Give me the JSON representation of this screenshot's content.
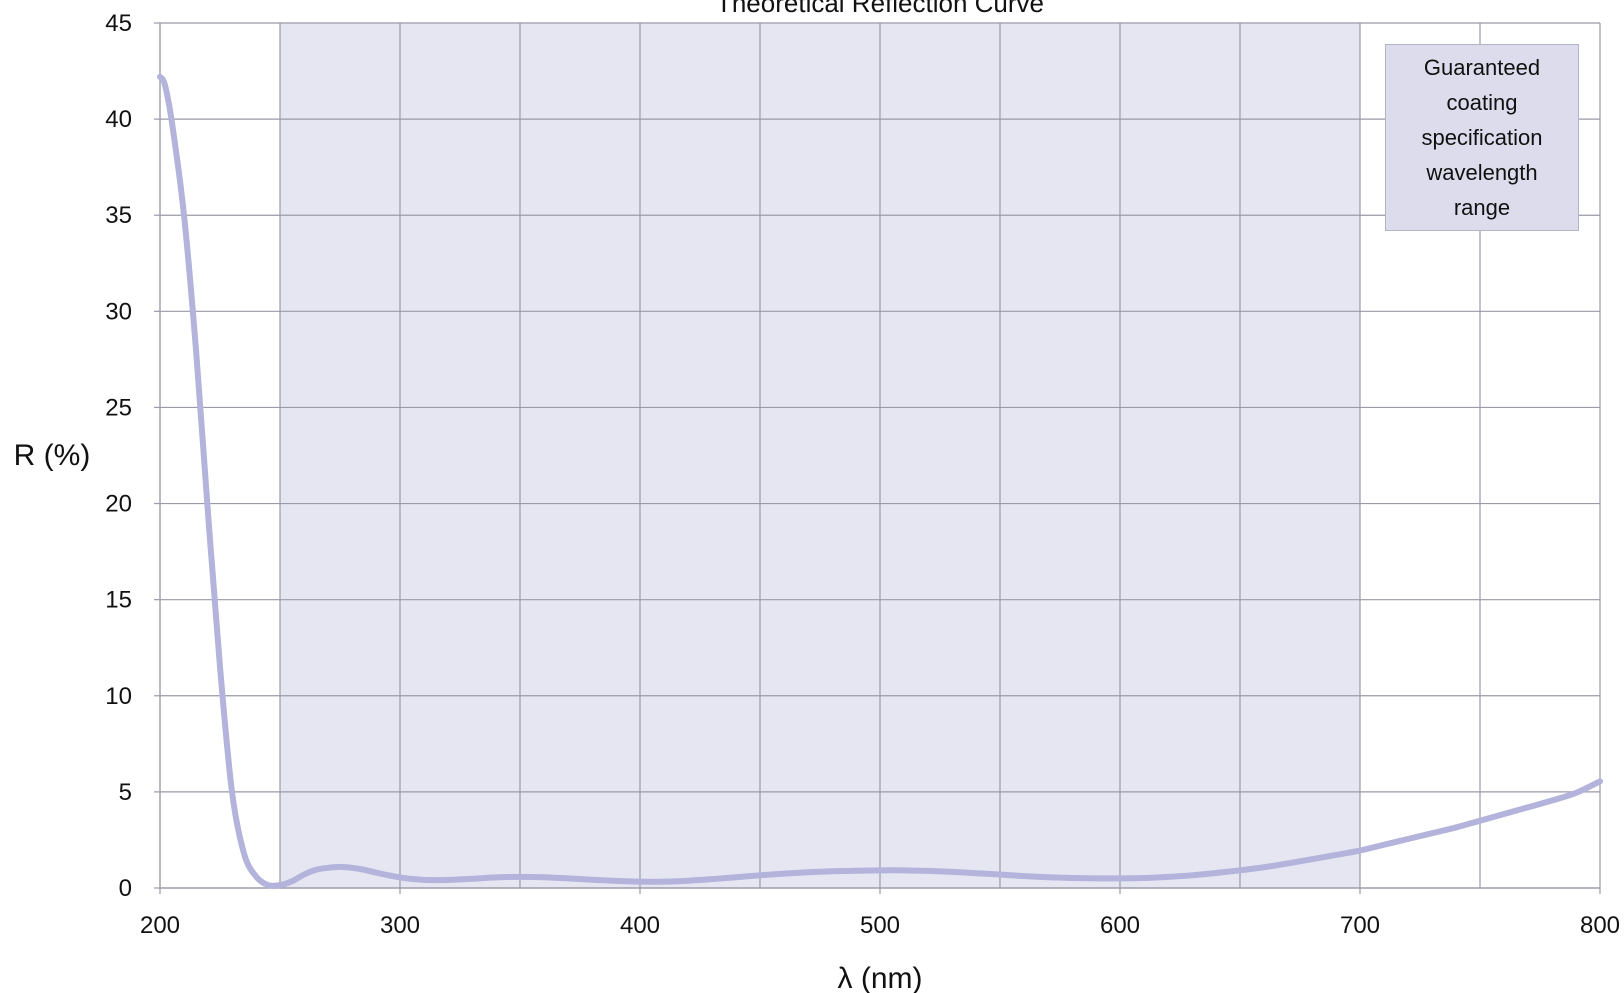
{
  "chart_data": {
    "type": "line",
    "title": "Theoretical Reflection Curve",
    "xlabel": "λ (nm)",
    "ylabel": "R (%)",
    "xlim": [
      200,
      800
    ],
    "ylim": [
      0,
      45
    ],
    "x_ticks": [
      200,
      300,
      400,
      500,
      600,
      700,
      800
    ],
    "y_ticks": [
      0,
      5,
      10,
      15,
      20,
      25,
      30,
      35,
      40,
      45
    ],
    "grid": true,
    "series": [
      {
        "x": [
          200,
          202,
          205,
          210,
          215,
          220,
          225,
          230,
          235,
          240,
          245,
          250,
          255,
          260,
          265,
          270,
          275,
          280,
          285,
          290,
          300,
          310,
          320,
          330,
          340,
          350,
          360,
          370,
          380,
          390,
          400,
          410,
          420,
          430,
          440,
          450,
          460,
          470,
          480,
          490,
          500,
          510,
          520,
          530,
          540,
          550,
          560,
          570,
          580,
          590,
          600,
          610,
          620,
          630,
          640,
          650,
          660,
          670,
          680,
          690,
          700,
          710,
          720,
          730,
          740,
          750,
          760,
          770,
          780,
          790,
          800
        ],
        "values": [
          42.2,
          41.8,
          39.8,
          35.0,
          28.0,
          19.5,
          11.5,
          5.0,
          1.8,
          0.6,
          0.15,
          0.15,
          0.35,
          0.7,
          0.95,
          1.05,
          1.1,
          1.05,
          0.95,
          0.8,
          0.55,
          0.42,
          0.42,
          0.48,
          0.55,
          0.58,
          0.56,
          0.5,
          0.43,
          0.37,
          0.33,
          0.33,
          0.38,
          0.46,
          0.56,
          0.66,
          0.75,
          0.82,
          0.87,
          0.9,
          0.92,
          0.92,
          0.89,
          0.84,
          0.77,
          0.7,
          0.62,
          0.56,
          0.52,
          0.5,
          0.5,
          0.52,
          0.58,
          0.66,
          0.78,
          0.92,
          1.08,
          1.28,
          1.5,
          1.72,
          1.95,
          2.25,
          2.55,
          2.85,
          3.15,
          3.5,
          3.85,
          4.2,
          4.55,
          4.95,
          5.55
        ]
      }
    ],
    "shaded_region": {
      "x": [
        250,
        700
      ],
      "label": "Guaranteed coating specification wavelength range"
    },
    "legend_position": "top-right",
    "colors": {
      "line": "#b3b3dc",
      "shade": "#e6e6f2",
      "legend_fill": "#dcdcec",
      "grid": "#9a9aa8"
    }
  }
}
